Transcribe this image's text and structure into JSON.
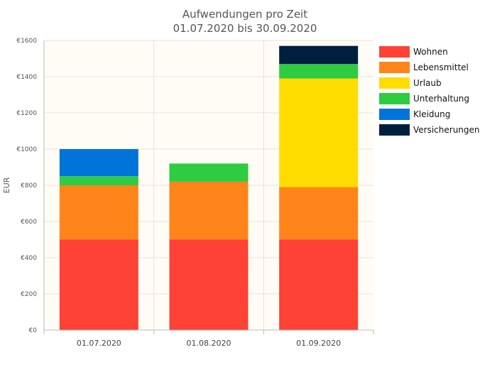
{
  "chart_data": {
    "type": "bar",
    "stacked": true,
    "title": "Aufwendungen pro Zeit",
    "subtitle": "01.07.2020 bis 30.09.2020",
    "ylabel": "EUR",
    "ylim": [
      0,
      1600
    ],
    "y_ticks": [
      "€0",
      "€200",
      "€400",
      "€600",
      "€800",
      "€1000",
      "€1200",
      "€1400",
      "€1600"
    ],
    "y_tick_values": [
      0,
      200,
      400,
      600,
      800,
      1000,
      1200,
      1400,
      1600
    ],
    "categories": [
      "01.07.2020",
      "01.08.2020",
      "01.09.2020"
    ],
    "series": [
      {
        "name": "Wohnen",
        "color": "#ff4136",
        "values": [
          500,
          500,
          500
        ]
      },
      {
        "name": "Lebensmittel",
        "color": "#ff851b",
        "values": [
          300,
          320,
          290
        ]
      },
      {
        "name": "Urlaub",
        "color": "#ffdc00",
        "values": [
          0,
          0,
          600
        ]
      },
      {
        "name": "Unterhaltung",
        "color": "#2ecc40",
        "values": [
          50,
          100,
          80
        ]
      },
      {
        "name": "Kleidung",
        "color": "#0074d9",
        "values": [
          150,
          0,
          0
        ]
      },
      {
        "name": "Versicherungen",
        "color": "#001f3f",
        "values": [
          0,
          0,
          100
        ]
      }
    ],
    "grid": true,
    "legend_position": "right",
    "plot_background": "#fffcf5"
  }
}
